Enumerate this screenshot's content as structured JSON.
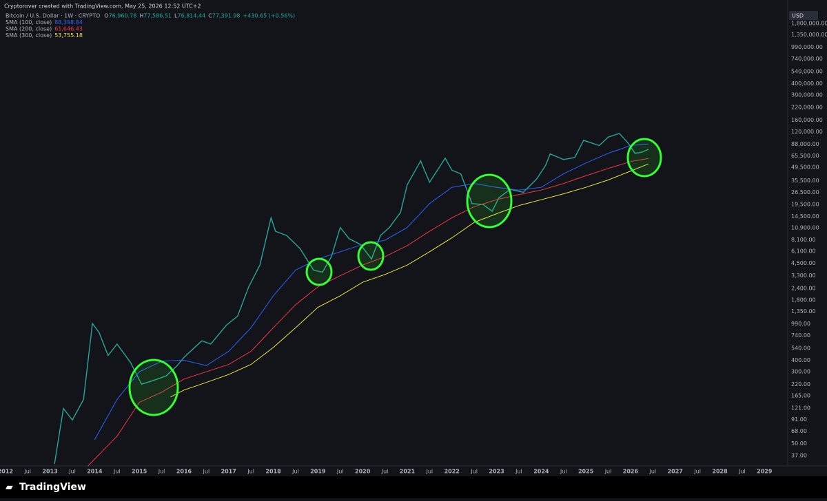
{
  "header": {
    "attribution": "Cryptorover created with TradingView.com, May 25, 2026 12:52 UTC+2",
    "brand": "TradingView"
  },
  "chart_data": {
    "type": "line",
    "title": "Bitcoin / U.S. Dollar · 1W · CRYPTO",
    "ohlc": [
      {
        "label": "O",
        "value": "76,960.78"
      },
      {
        "label": "H",
        "value": "77,586.51"
      },
      {
        "label": "L",
        "value": "76,814.44"
      },
      {
        "label": "C",
        "value": "77,391.98"
      }
    ],
    "change": "+430.65 (+0.56%)",
    "currency": "USD",
    "log_scale": true,
    "grid": false,
    "xlim": [
      2011.88,
      2029.52
    ],
    "ylim": [
      28.6,
      3220000
    ],
    "xticks": [
      2012,
      {
        "value": 2012.5,
        "label": "Jul"
      },
      2013,
      {
        "value": 2013.5,
        "label": "Jul"
      },
      2014,
      {
        "value": 2014.5,
        "label": "Jul"
      },
      2015,
      {
        "value": 2015.5,
        "label": "Jul"
      },
      2016,
      {
        "value": 2016.5,
        "label": "Jul"
      },
      2017,
      {
        "value": 2017.5,
        "label": "Jul"
      },
      2018,
      {
        "value": 2018.5,
        "label": "Jul"
      },
      2019,
      {
        "value": 2019.5,
        "label": "Jul"
      },
      2020,
      {
        "value": 2020.5,
        "label": "Jul"
      },
      2021,
      {
        "value": 2021.5,
        "label": "Jul"
      },
      2022,
      {
        "value": 2022.5,
        "label": "Jul"
      },
      2023,
      {
        "value": 2023.5,
        "label": "Jul"
      },
      2024,
      {
        "value": 2024.5,
        "label": "Jul"
      },
      2025,
      {
        "value": 2025.5,
        "label": "Jul"
      },
      2026,
      {
        "value": 2026.5,
        "label": "Jul"
      },
      2027,
      {
        "value": 2027.5,
        "label": "Jul"
      },
      2028,
      {
        "value": 2028.5,
        "label": "Jul"
      },
      2029
    ],
    "yticks": [
      {
        "value": 1800000,
        "label": "1,800,000.00"
      },
      {
        "value": 1350000,
        "label": "1,350,000.00"
      },
      {
        "value": 990000,
        "label": "990,000.00"
      },
      {
        "value": 740000,
        "label": "740,000.00"
      },
      {
        "value": 540000,
        "label": "540,000.00"
      },
      {
        "value": 400000,
        "label": "400,000.00"
      },
      {
        "value": 300000,
        "label": "300,000.00"
      },
      {
        "value": 220000,
        "label": "220,000.00"
      },
      {
        "value": 160000,
        "label": "160,000.00"
      },
      {
        "value": 120000,
        "label": "120,000.00"
      },
      {
        "value": 88000,
        "label": "88,000.00"
      },
      {
        "value": 65500,
        "label": "65,500.00"
      },
      {
        "value": 49500,
        "label": "49,500.00"
      },
      {
        "value": 35500,
        "label": "35,500.00"
      },
      {
        "value": 26500,
        "label": "26,500.00"
      },
      {
        "value": 19500,
        "label": "19,500.00"
      },
      {
        "value": 14500,
        "label": "14,500.00"
      },
      {
        "value": 10900,
        "label": "10,900.00"
      },
      {
        "value": 8100,
        "label": "8,100.00"
      },
      {
        "value": 6100,
        "label": "6,100.00"
      },
      {
        "value": 4500,
        "label": "4,500.00"
      },
      {
        "value": 3300,
        "label": "3,300.00"
      },
      {
        "value": 2400,
        "label": "2,400.00"
      },
      {
        "value": 1800,
        "label": "1,800.00"
      },
      {
        "value": 1350,
        "label": "1,350.00"
      },
      {
        "value": 990,
        "label": "990.00"
      },
      {
        "value": 740,
        "label": "740.00"
      },
      {
        "value": 540,
        "label": "540.00"
      },
      {
        "value": 400,
        "label": "400.00"
      },
      {
        "value": 300,
        "label": "300.00"
      },
      {
        "value": 220,
        "label": "220.00"
      },
      {
        "value": 165,
        "label": "165.00"
      },
      {
        "value": 121,
        "label": "121.00"
      },
      {
        "value": 91,
        "label": "91.00"
      },
      {
        "value": 68,
        "label": "68.00"
      },
      {
        "value": 50,
        "label": "50.00"
      },
      {
        "value": 37,
        "label": "37.00"
      }
    ],
    "series": [
      {
        "color": "#26a69a",
        "x": [
          2013.1,
          2013.3,
          2013.5,
          2013.75,
          2013.95,
          2014.1,
          2014.3,
          2014.5,
          2014.8,
          2015.05,
          2015.3,
          2015.6,
          2015.85,
          2016.0,
          2016.4,
          2016.6,
          2016.95,
          2017.2,
          2017.45,
          2017.7,
          2017.95,
          2018.05,
          2018.3,
          2018.6,
          2018.9,
          2019.1,
          2019.3,
          2019.5,
          2019.7,
          2019.95,
          2020.2,
          2020.4,
          2020.6,
          2020.85,
          2021.0,
          2021.3,
          2021.5,
          2021.85,
          2022.0,
          2022.2,
          2022.45,
          2022.7,
          2022.9,
          2023.05,
          2023.3,
          2023.6,
          2023.9,
          2024.1,
          2024.2,
          2024.5,
          2024.75,
          2024.95,
          2025.3,
          2025.5,
          2025.75,
          2025.95,
          2026.1,
          2026.25,
          2026.4
        ],
        "values": [
          30,
          120,
          90,
          150,
          1000,
          800,
          450,
          600,
          380,
          220,
          240,
          270,
          350,
          430,
          650,
          600,
          960,
          1200,
          2500,
          4300,
          14000,
          10000,
          9000,
          6500,
          3800,
          3600,
          5300,
          11000,
          8300,
          7200,
          5000,
          9000,
          11000,
          16000,
          32000,
          58000,
          34000,
          62000,
          46000,
          42000,
          20000,
          19500,
          16500,
          23000,
          28500,
          26500,
          37000,
          52000,
          69000,
          60000,
          63000,
          97000,
          85000,
          105000,
          115000,
          90000,
          70000,
          72000,
          77391.98
        ]
      },
      {
        "name": "SMA (100, close)",
        "last_label": "88,398.84",
        "color": "#2962ff",
        "x": [
          2014.0,
          2014.5,
          2015.0,
          2015.5,
          2016.0,
          2016.5,
          2017.0,
          2017.5,
          2018.0,
          2018.5,
          2019.0,
          2019.5,
          2020.0,
          2020.5,
          2021.0,
          2021.5,
          2022.0,
          2022.5,
          2023.0,
          2023.5,
          2024.0,
          2024.5,
          2025.0,
          2025.5,
          2026.0,
          2026.4
        ],
        "values": [
          55,
          150,
          300,
          390,
          400,
          350,
          500,
          900,
          2000,
          3800,
          5000,
          6000,
          7200,
          8000,
          11000,
          20000,
          30000,
          33000,
          30000,
          28000,
          30000,
          42000,
          55000,
          70000,
          85000,
          88398.84
        ]
      },
      {
        "name": "SMA (200, close)",
        "last_label": "61,646.43",
        "color": "#f23645",
        "x": [
          2013.85,
          2014.5,
          2015.0,
          2015.5,
          2016.0,
          2016.5,
          2017.0,
          2017.5,
          2018.0,
          2018.5,
          2019.0,
          2019.5,
          2020.0,
          2020.5,
          2021.0,
          2021.5,
          2022.0,
          2022.5,
          2023.0,
          2023.5,
          2024.0,
          2024.5,
          2025.0,
          2025.5,
          2026.0,
          2026.4
        ],
        "values": [
          28.6,
          60,
          140,
          180,
          250,
          300,
          360,
          500,
          900,
          1600,
          2500,
          3300,
          4300,
          5300,
          7000,
          10000,
          14000,
          18500,
          22000,
          25000,
          28000,
          33000,
          40000,
          48000,
          57000,
          61646.43
        ]
      },
      {
        "name": "SMA (300, close)",
        "last_label": "53,755.18",
        "color": "#f0e442",
        "x": [
          2015.7,
          2016.0,
          2016.5,
          2017.0,
          2017.5,
          2018.0,
          2018.5,
          2019.0,
          2019.5,
          2020.0,
          2020.5,
          2021.0,
          2021.5,
          2022.0,
          2022.5,
          2023.0,
          2023.5,
          2024.0,
          2024.5,
          2025.0,
          2025.5,
          2026.0,
          2026.4
        ],
        "values": [
          160,
          190,
          230,
          280,
          360,
          550,
          900,
          1500,
          2000,
          2800,
          3400,
          4300,
          6000,
          8500,
          12500,
          15500,
          19000,
          22000,
          25500,
          30000,
          36000,
          45000,
          53755.18
        ]
      }
    ]
  }
}
